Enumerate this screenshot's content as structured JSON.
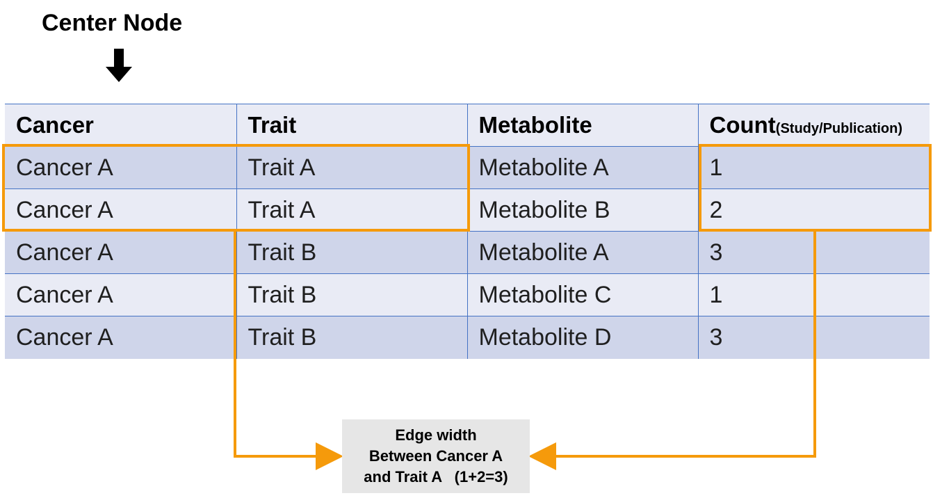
{
  "header": {
    "center_label": "Center Node"
  },
  "table": {
    "columns": [
      {
        "label": "Cancer",
        "sub": ""
      },
      {
        "label": "Trait",
        "sub": ""
      },
      {
        "label": "Metabolite",
        "sub": ""
      },
      {
        "label": "Count",
        "sub": "(Study/Publication)"
      }
    ],
    "rows": [
      {
        "cancer": "Cancer A",
        "trait": "Trait A",
        "metabolite": "Metabolite A",
        "count": "1"
      },
      {
        "cancer": "Cancer A",
        "trait": "Trait A",
        "metabolite": "Metabolite B",
        "count": "2"
      },
      {
        "cancer": "Cancer A",
        "trait": "Trait B",
        "metabolite": "Metabolite A",
        "count": "3"
      },
      {
        "cancer": "Cancer A",
        "trait": "Trait B",
        "metabolite": "Metabolite C",
        "count": "1"
      },
      {
        "cancer": "Cancer A",
        "trait": "Trait B",
        "metabolite": "Metabolite D",
        "count": "3"
      }
    ]
  },
  "note": {
    "line1": "Edge width",
    "line2": "Between Cancer A",
    "line3": "and Trait A   (1+2=3)"
  },
  "colors": {
    "highlight": "#f59a0b",
    "header_bg": "#e9ebf5",
    "row_dark": "#cfd5ea",
    "row_light": "#e9ebf5",
    "grid": "#4472c4",
    "note_bg": "#e6e6e6"
  },
  "icons": {
    "center_arrow": "arrow-down-icon"
  }
}
